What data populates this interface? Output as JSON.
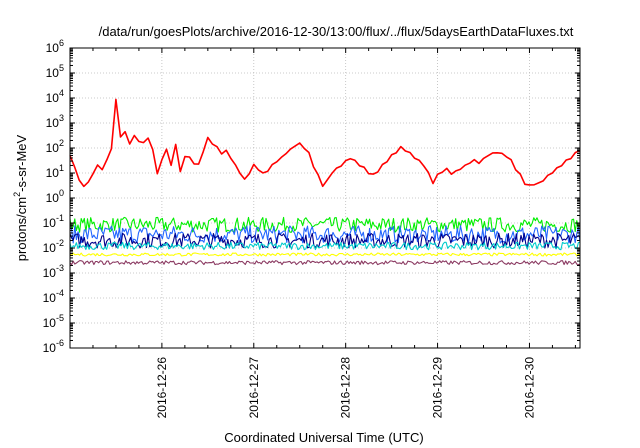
{
  "chart_data": {
    "type": "line",
    "title": "/data/run/goesPlots/archive/2016-12-30/13:00/flux/../flux/5daysEarthDataFluxes.txt",
    "xlabel": "Coordinated Universal Time (UTC)",
    "ylabel": "protons/cm²-s-sr-MeV",
    "ylabel_parts": {
      "pre": "protons/cm",
      "sup": "2",
      "post": "-s-sr-MeV"
    },
    "xscale": "time (days)",
    "yscale": "log",
    "xlim": [
      25.0,
      30.55
    ],
    "ylim": [
      1e-06,
      1000000.0
    ],
    "x_ticks": [
      {
        "value": 26,
        "label": "2016-12-26"
      },
      {
        "value": 27,
        "label": "2016-12-27"
      },
      {
        "value": 28,
        "label": "2016-12-28"
      },
      {
        "value": 29,
        "label": "2016-12-29"
      },
      {
        "value": 30,
        "label": "2016-12-30"
      }
    ],
    "y_ticks": [
      {
        "exp": -6,
        "label": "10",
        "sup": "-6"
      },
      {
        "exp": -5,
        "label": "10",
        "sup": "-5"
      },
      {
        "exp": -4,
        "label": "10",
        "sup": "-4"
      },
      {
        "exp": -3,
        "label": "10",
        "sup": "-3"
      },
      {
        "exp": -2,
        "label": "10",
        "sup": "-2"
      },
      {
        "exp": -1,
        "label": "10",
        "sup": "-1"
      },
      {
        "exp": 0,
        "label": "10",
        "sup": "0"
      },
      {
        "exp": 1,
        "label": "10",
        "sup": "1"
      },
      {
        "exp": 2,
        "label": "10",
        "sup": "2"
      },
      {
        "exp": 3,
        "label": "10",
        "sup": "3"
      },
      {
        "exp": 4,
        "label": "10",
        "sup": "4"
      },
      {
        "exp": 5,
        "label": "10",
        "sup": "5"
      },
      {
        "exp": 6,
        "label": "10",
        "sup": "6"
      }
    ],
    "grid": true,
    "legend": "none",
    "series": [
      {
        "color": "#ff0000",
        "x": [
          25.0,
          25.05,
          25.1,
          25.15,
          25.2,
          25.25,
          25.3,
          25.35,
          25.4,
          25.45,
          25.5,
          25.55,
          25.6,
          25.65,
          25.7,
          25.75,
          25.8,
          25.85,
          25.9,
          25.95,
          26.0,
          26.05,
          26.1,
          26.15,
          26.2,
          26.25,
          26.3,
          26.35,
          26.4,
          26.45,
          26.5,
          26.55,
          26.6,
          26.65,
          26.7,
          26.75,
          26.8,
          26.85,
          26.9,
          26.95,
          27.0,
          27.05,
          27.1,
          27.15,
          27.2,
          27.25,
          27.3,
          27.35,
          27.4,
          27.45,
          27.5,
          27.55,
          27.6,
          27.65,
          27.7,
          27.75,
          27.8,
          27.85,
          27.9,
          27.95,
          28.0,
          28.05,
          28.1,
          28.15,
          28.2,
          28.25,
          28.3,
          28.35,
          28.4,
          28.45,
          28.5,
          28.55,
          28.6,
          28.65,
          28.7,
          28.75,
          28.8,
          28.85,
          28.9,
          28.95,
          29.0,
          29.05,
          29.1,
          29.15,
          29.2,
          29.25,
          29.3,
          29.35,
          29.4,
          29.45,
          29.5,
          29.55,
          29.6,
          29.65,
          29.7,
          29.75,
          29.8,
          29.85,
          29.9,
          29.95,
          30.0,
          30.05,
          30.1,
          30.15,
          30.2,
          30.25,
          30.3,
          30.35,
          30.4,
          30.45,
          30.5,
          30.55
        ],
        "y": [
          50,
          20,
          5,
          3,
          4,
          10,
          20,
          15,
          30,
          100,
          8000,
          300,
          400,
          150,
          300,
          200,
          150,
          250,
          80,
          10,
          30,
          100,
          20,
          150,
          10,
          50,
          40,
          25,
          20,
          80,
          250,
          150,
          100,
          60,
          80,
          40,
          20,
          10,
          5,
          10,
          20,
          15,
          10,
          12,
          20,
          30,
          40,
          60,
          80,
          120,
          150,
          100,
          60,
          20,
          8,
          3,
          5,
          10,
          15,
          20,
          30,
          40,
          30,
          20,
          15,
          10,
          8,
          12,
          20,
          30,
          50,
          70,
          100,
          80,
          60,
          40,
          30,
          20,
          10,
          4,
          8,
          12,
          15,
          10,
          12,
          15,
          20,
          25,
          30,
          25,
          35,
          50,
          60,
          70,
          60,
          50,
          30,
          15,
          8,
          4,
          3,
          3.5,
          4,
          5,
          8,
          10,
          15,
          20,
          30,
          40,
          60,
          80
        ]
      },
      {
        "color": "#00ee00",
        "level": 0.085,
        "spread": 0.3
      },
      {
        "color": "#2266ff",
        "level": 0.035,
        "spread": 0.35
      },
      {
        "color": "#00008b",
        "level": 0.02,
        "spread": 0.3
      },
      {
        "color": "#00cccc",
        "level": 0.012,
        "spread": 0.15
      },
      {
        "color": "#ffff00",
        "level": 0.0055,
        "spread": 0.06
      },
      {
        "color": "#8b3a62",
        "level": 0.0026,
        "spread": 0.08
      }
    ]
  }
}
